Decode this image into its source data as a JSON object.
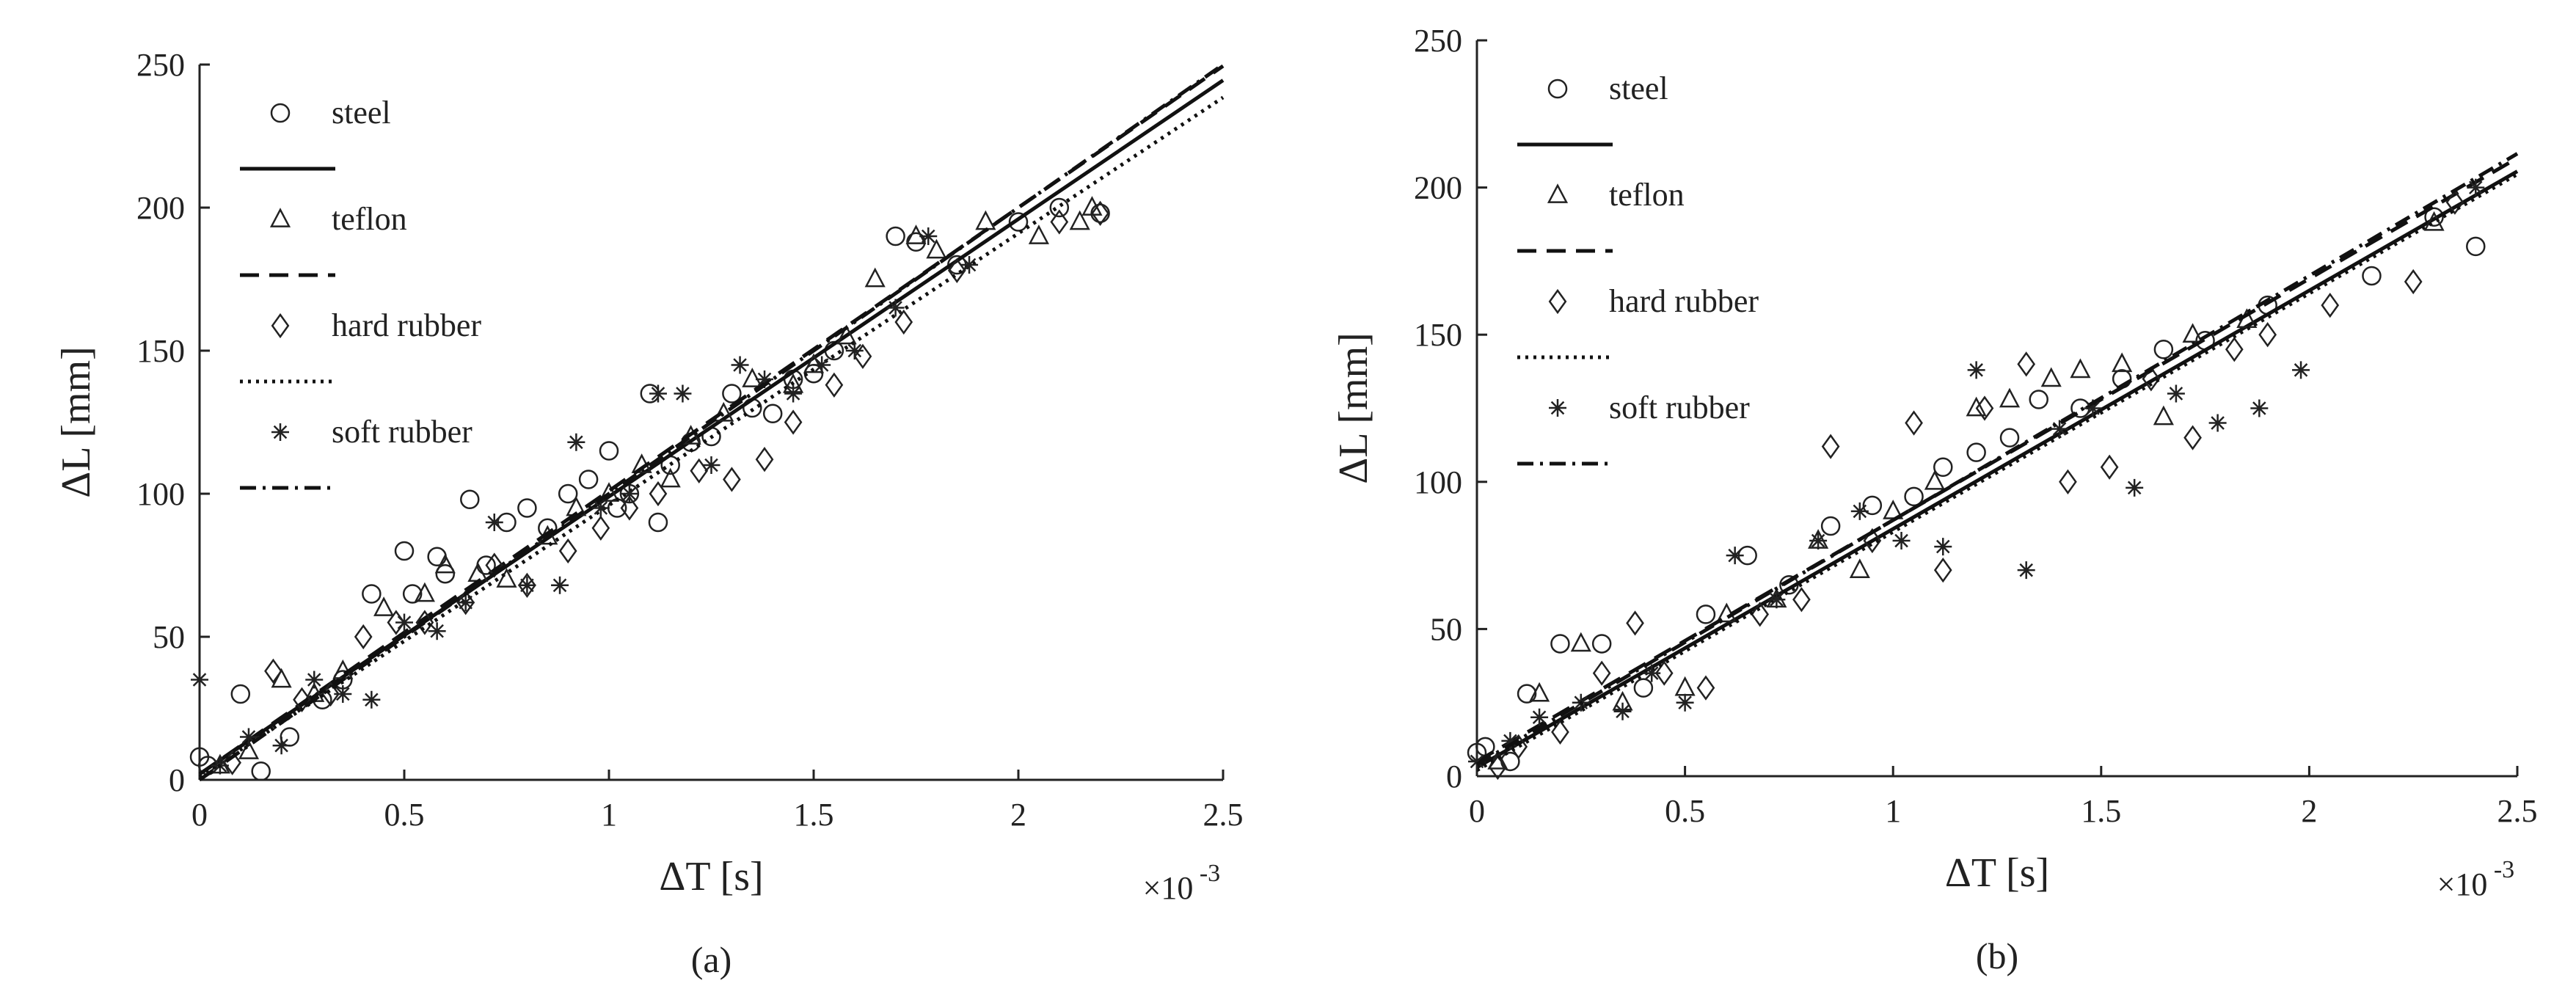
{
  "figure": {
    "panels": [
      {
        "panel_label": "(a)",
        "xlabel": "ΔT [s]",
        "ylabel": "ΔL [mm]",
        "x_exponent_note": "×10",
        "x_exponent_power": "-3",
        "legend": [
          "steel",
          "teflon",
          "hard rubber",
          "soft rubber"
        ]
      },
      {
        "panel_label": "(b)",
        "xlabel": "ΔT [s]",
        "ylabel": "ΔL [mm]",
        "x_exponent_note": "×10",
        "x_exponent_power": "-3",
        "legend": [
          "steel",
          "teflon",
          "hard rubber",
          "soft rubber"
        ]
      }
    ]
  },
  "chart_data": [
    {
      "type": "scatter",
      "panel": "(a)",
      "xlabel": "ΔT [s]",
      "ylabel": "ΔL [mm]",
      "x_multiplier": "×10^-3",
      "xlim": [
        0,
        2.5
      ],
      "ylim": [
        0,
        250
      ],
      "xticks": [
        0,
        0.5,
        1,
        1.5,
        2,
        2.5
      ],
      "xtick_labels": [
        "0",
        "0.5",
        "1",
        "1.5",
        "2",
        "2.5"
      ],
      "yticks": [
        0,
        50,
        100,
        150,
        200,
        250
      ],
      "ytick_labels": [
        "0",
        "50",
        "100",
        "150",
        "200",
        "250"
      ],
      "grid": false,
      "legend_position": "top-left",
      "series": [
        {
          "name": "steel",
          "marker": "circle",
          "line_style": "solid",
          "fit": {
            "slope": 97,
            "intercept": 2
          },
          "x": [
            0.0,
            0.02,
            0.1,
            0.15,
            0.22,
            0.3,
            0.35,
            0.42,
            0.5,
            0.52,
            0.58,
            0.6,
            0.66,
            0.7,
            0.75,
            0.8,
            0.85,
            0.9,
            0.95,
            1.0,
            1.02,
            1.05,
            1.1,
            1.12,
            1.15,
            1.2,
            1.25,
            1.3,
            1.35,
            1.4,
            1.45,
            1.5,
            1.55,
            1.7,
            1.75,
            1.85,
            2.0,
            2.1,
            2.2
          ],
          "y": [
            8,
            5,
            30,
            3,
            15,
            28,
            35,
            65,
            80,
            65,
            78,
            72,
            98,
            75,
            90,
            95,
            88,
            100,
            105,
            115,
            95,
            100,
            135,
            90,
            110,
            118,
            120,
            135,
            130,
            128,
            140,
            142,
            150,
            190,
            188,
            180,
            195,
            200,
            198
          ]
        },
        {
          "name": "teflon",
          "marker": "triangle",
          "line_style": "dashed",
          "fit": {
            "slope": 99,
            "intercept": 2
          },
          "x": [
            0.05,
            0.12,
            0.2,
            0.28,
            0.35,
            0.45,
            0.55,
            0.6,
            0.68,
            0.75,
            0.85,
            0.92,
            1.0,
            1.08,
            1.15,
            1.2,
            1.28,
            1.35,
            1.45,
            1.5,
            1.58,
            1.65,
            1.75,
            1.8,
            1.92,
            2.05,
            2.15,
            2.18
          ],
          "y": [
            5,
            10,
            35,
            30,
            38,
            60,
            65,
            75,
            72,
            70,
            85,
            95,
            100,
            110,
            105,
            120,
            128,
            140,
            138,
            145,
            155,
            175,
            190,
            185,
            195,
            190,
            195,
            200
          ]
        },
        {
          "name": "hard rubber",
          "marker": "diamond",
          "line_style": "dotted",
          "fit": {
            "slope": 95,
            "intercept": 1
          },
          "x": [
            0.08,
            0.18,
            0.25,
            0.32,
            0.4,
            0.48,
            0.55,
            0.65,
            0.72,
            0.8,
            0.9,
            0.98,
            1.05,
            1.12,
            1.22,
            1.3,
            1.38,
            1.45,
            1.55,
            1.62,
            1.72,
            1.85,
            2.1,
            2.2
          ],
          "y": [
            6,
            38,
            28,
            30,
            50,
            55,
            55,
            62,
            75,
            68,
            80,
            88,
            95,
            100,
            108,
            105,
            112,
            125,
            138,
            148,
            160,
            178,
            195,
            198
          ]
        },
        {
          "name": "soft rubber",
          "marker": "asterisk",
          "line_style": "dashdot",
          "fit": {
            "slope": 100,
            "intercept": 0
          },
          "x": [
            0.0,
            0.05,
            0.12,
            0.2,
            0.28,
            0.35,
            0.42,
            0.5,
            0.58,
            0.65,
            0.72,
            0.8,
            0.88,
            0.92,
            0.98,
            1.05,
            1.12,
            1.18,
            1.25,
            1.32,
            1.38,
            1.45,
            1.52,
            1.6,
            1.7,
            1.78,
            1.88
          ],
          "y": [
            35,
            5,
            15,
            12,
            35,
            30,
            28,
            55,
            52,
            62,
            90,
            68,
            68,
            118,
            95,
            100,
            135,
            135,
            110,
            145,
            140,
            135,
            145,
            150,
            165,
            190,
            180
          ]
        }
      ]
    },
    {
      "type": "scatter",
      "panel": "(b)",
      "xlabel": "ΔT [s]",
      "ylabel": "ΔL [mm]",
      "x_multiplier": "×10^-3",
      "xlim": [
        0,
        2.5
      ],
      "ylim": [
        0,
        250
      ],
      "xticks": [
        0,
        0.5,
        1,
        1.5,
        2,
        2.5
      ],
      "xtick_labels": [
        "0",
        "0.5",
        "1",
        "1.5",
        "2",
        "2.5"
      ],
      "yticks": [
        0,
        50,
        100,
        150,
        200,
        250
      ],
      "ytick_labels": [
        "0",
        "50",
        "100",
        "150",
        "200",
        "250"
      ],
      "grid": false,
      "legend_position": "top-left",
      "series": [
        {
          "name": "steel",
          "marker": "circle",
          "line_style": "solid",
          "fit": {
            "slope": 81,
            "intercept": 3
          },
          "x": [
            0.0,
            0.02,
            0.08,
            0.12,
            0.2,
            0.3,
            0.4,
            0.55,
            0.65,
            0.75,
            0.85,
            0.95,
            1.05,
            1.12,
            1.2,
            1.28,
            1.35,
            1.45,
            1.55,
            1.65,
            1.75,
            1.9,
            2.15,
            2.3,
            2.4
          ],
          "y": [
            8,
            10,
            5,
            28,
            45,
            45,
            30,
            55,
            75,
            65,
            85,
            92,
            95,
            105,
            110,
            115,
            128,
            125,
            135,
            145,
            148,
            160,
            170,
            190,
            180
          ]
        },
        {
          "name": "teflon",
          "marker": "triangle",
          "line_style": "dashed",
          "fit": {
            "slope": 82,
            "intercept": 5
          },
          "x": [
            0.05,
            0.15,
            0.25,
            0.35,
            0.5,
            0.6,
            0.72,
            0.82,
            0.92,
            1.0,
            1.1,
            1.2,
            1.28,
            1.38,
            1.45,
            1.55,
            1.65,
            1.72,
            1.85,
            2.3
          ],
          "y": [
            5,
            28,
            45,
            25,
            30,
            55,
            60,
            80,
            70,
            90,
            100,
            125,
            128,
            135,
            138,
            140,
            122,
            150,
            155,
            188
          ]
        },
        {
          "name": "hard rubber",
          "marker": "diamond",
          "line_style": "dotted",
          "fit": {
            "slope": 81,
            "intercept": 2
          },
          "x": [
            0.05,
            0.1,
            0.2,
            0.3,
            0.38,
            0.45,
            0.55,
            0.68,
            0.78,
            0.85,
            0.95,
            1.05,
            1.12,
            1.22,
            1.32,
            1.42,
            1.52,
            1.62,
            1.72,
            1.82,
            1.9,
            2.05,
            2.25,
            2.35
          ],
          "y": [
            3,
            10,
            15,
            35,
            52,
            35,
            30,
            55,
            60,
            112,
            80,
            120,
            70,
            125,
            140,
            100,
            105,
            135,
            115,
            145,
            150,
            160,
            168,
            195
          ]
        },
        {
          "name": "soft rubber",
          "marker": "asterisk",
          "line_style": "dashdot",
          "fit": {
            "slope": 83,
            "intercept": 4
          },
          "x": [
            0.0,
            0.08,
            0.15,
            0.25,
            0.35,
            0.42,
            0.5,
            0.62,
            0.72,
            0.82,
            0.92,
            1.02,
            1.12,
            1.2,
            1.32,
            1.4,
            1.48,
            1.58,
            1.68,
            1.78,
            1.88,
            1.98,
            2.4
          ],
          "y": [
            5,
            12,
            20,
            25,
            22,
            35,
            25,
            75,
            60,
            80,
            90,
            80,
            78,
            138,
            70,
            118,
            125,
            98,
            130,
            120,
            125,
            138,
            200
          ]
        }
      ]
    }
  ]
}
